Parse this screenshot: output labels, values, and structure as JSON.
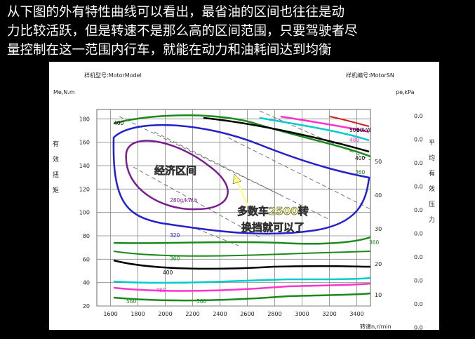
{
  "caption": {
    "line1": "从下图的外有特性曲线可以看出，最省油的区间也往往是动",
    "line2": "力比较活跃，但是转速不是那么高的区间范围，只要驾驶者尽",
    "line3": "量控制在这一范围内行车，就能在动力和油耗间达到均衡"
  },
  "chart_header": {
    "model_label": "样机型号:MotorModel",
    "serial_label": "样机编号:MotorSN"
  },
  "chart_data": {
    "type": "line",
    "x_unit": "转速n,r/min",
    "y_left_unit": "Me,N.m",
    "y_left_title": "有效扭矩",
    "y_right_unit": "pe,kPa",
    "y_right_title": "平均有效压力",
    "x_ticks": [
      1600,
      1800,
      2000,
      2200,
      2400,
      2600,
      2800,
      3000,
      3200,
      3400
    ],
    "y_left_ticks": [
      20,
      40,
      60,
      80,
      100,
      120,
      140,
      160,
      180
    ],
    "y_right_power_ticks": [
      10,
      20,
      30,
      40,
      50
    ],
    "y_right_pe_ticks": [
      "0.0",
      "0.0",
      "0.0",
      "0.0",
      "0.0",
      "0.0",
      "0.0",
      "0.0",
      "0.0",
      "0.0"
    ],
    "xlim": [
      1500,
      3500
    ],
    "ylim": [
      20,
      188
    ],
    "grid": true,
    "curve_labels": [
      "400",
      "500",
      "480",
      "400",
      "360",
      "60kW",
      "280g/kW.h",
      "320",
      "360",
      "400",
      "480",
      "360",
      "560",
      "560"
    ]
  },
  "annotations": {
    "economy_zone": "经济区间",
    "shift_note_line1": "多数车2500转",
    "shift_note_line2": "换挡就可以了"
  },
  "colors": {
    "annotation_fill": "#ffff88",
    "purple_curve": "#7a1f8f",
    "blue_curve": "#2222cc",
    "green_curve": "#1a8a1a"
  }
}
